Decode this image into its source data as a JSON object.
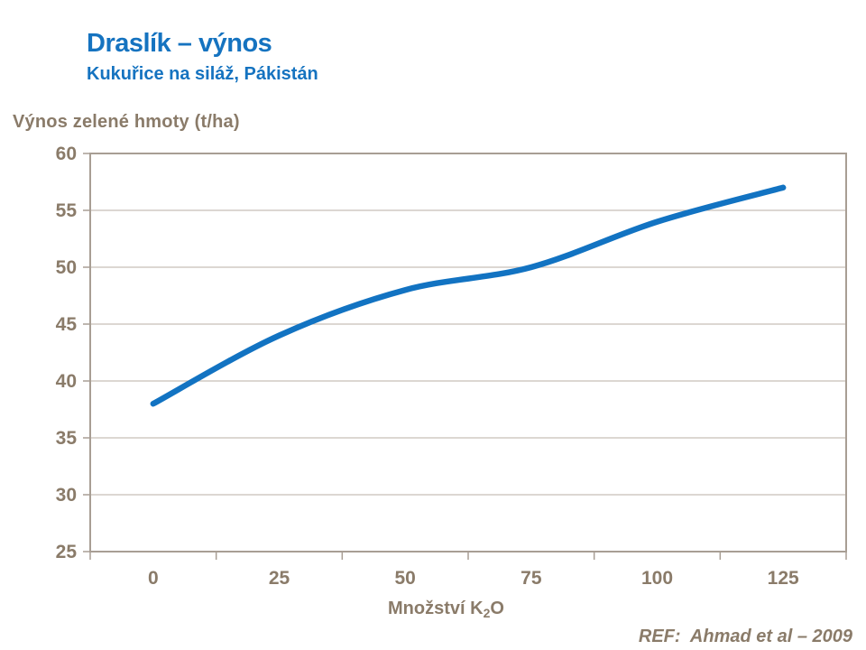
{
  "header": {
    "title": "Draslík – výnos",
    "subtitle": "Kukuřice na siláž, Pákistán"
  },
  "footer": {
    "ref": "REF:  Ahmad et al – 2009"
  },
  "chart_data": {
    "type": "line",
    "title": "Draslík – výnos",
    "subtitle": "Kukuřice na siláž, Pákistán",
    "categories": [
      0,
      25,
      50,
      75,
      100,
      125
    ],
    "values": [
      38,
      44,
      48,
      50,
      54,
      57
    ],
    "series_name": "Výnos zelené hmoty",
    "xlabel": "Množství K2O",
    "xlabel_parts": {
      "pre": "Množství K",
      "sub": "2",
      "post": "O"
    },
    "ylabel": "Výnos zelené hmoty (t/ha)",
    "ylim": [
      25,
      60
    ],
    "yticks": [
      60,
      55,
      50,
      45,
      40,
      35,
      30,
      25
    ],
    "xtick_labels": [
      "0",
      "25",
      "50",
      "75",
      "100",
      "125"
    ],
    "grid": true,
    "legend_position": "none",
    "colors": {
      "heading_blue": "#1573C0",
      "line_blue": "#1273C2",
      "axis_text": "#8A7B69",
      "axis_line": "#A89E94",
      "gridline": "#C8BFB7"
    }
  }
}
